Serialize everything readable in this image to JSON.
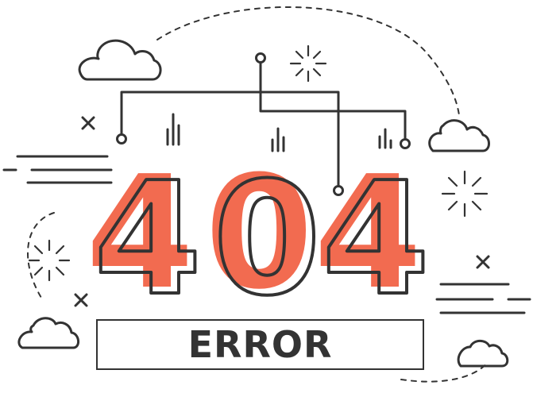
{
  "error_code": {
    "digit_1": "4",
    "digit_2": "0",
    "digit_3": "4"
  },
  "error_label": "ERROR",
  "colors": {
    "accent": "#f26b50",
    "outline": "#333333",
    "background": "#ffffff"
  },
  "decorations": [
    "cloud-icon",
    "sparkle-icon",
    "cross-icon",
    "circuit-lines",
    "signal-bars-icon"
  ]
}
